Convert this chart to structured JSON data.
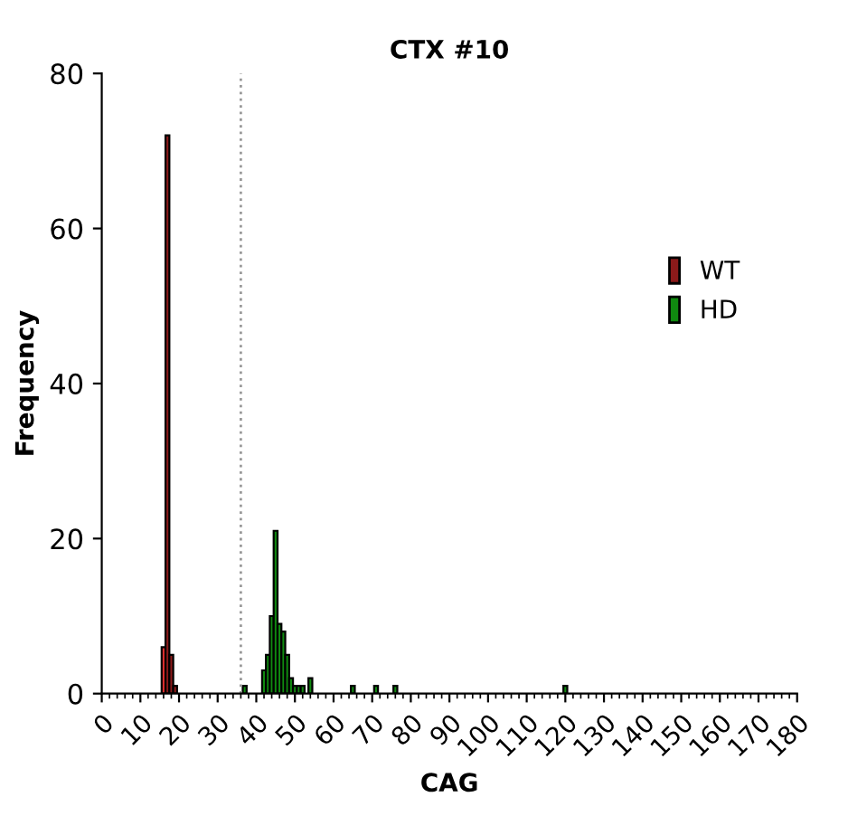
{
  "chart_data": {
    "type": "bar",
    "title": "CTX #10",
    "xlabel": "CAG",
    "ylabel": "Frequency",
    "xlim": [
      0,
      180
    ],
    "xticks": [
      0,
      10,
      20,
      30,
      40,
      50,
      60,
      70,
      80,
      90,
      100,
      110,
      120,
      130,
      140,
      150,
      160,
      170,
      180
    ],
    "ylim": [
      0,
      80
    ],
    "yticks": [
      0,
      20,
      40,
      60,
      80
    ],
    "grid": false,
    "legend": "right",
    "ref_lines": [
      {
        "axis": "x",
        "value": 36,
        "color": "#999999",
        "line_style": "dotted"
      }
    ],
    "series": [
      {
        "name": "WT",
        "color": "#8b1a1a",
        "colors": [
          "#e03030",
          "#8b1a1a",
          "#8b1a1a",
          "#8b1a1a"
        ],
        "x": [
          16,
          17,
          18,
          19
        ],
        "values": [
          6,
          72,
          5,
          1
        ]
      },
      {
        "name": "HD",
        "color": "#108a10",
        "x": [
          37,
          42,
          43,
          44,
          45,
          46,
          47,
          48,
          49,
          50,
          51,
          52,
          54,
          65,
          71,
          76,
          120
        ],
        "values": [
          1,
          3,
          5,
          10,
          21,
          9,
          8,
          5,
          2,
          1,
          1,
          1,
          2,
          1,
          1,
          1,
          1
        ]
      }
    ]
  }
}
